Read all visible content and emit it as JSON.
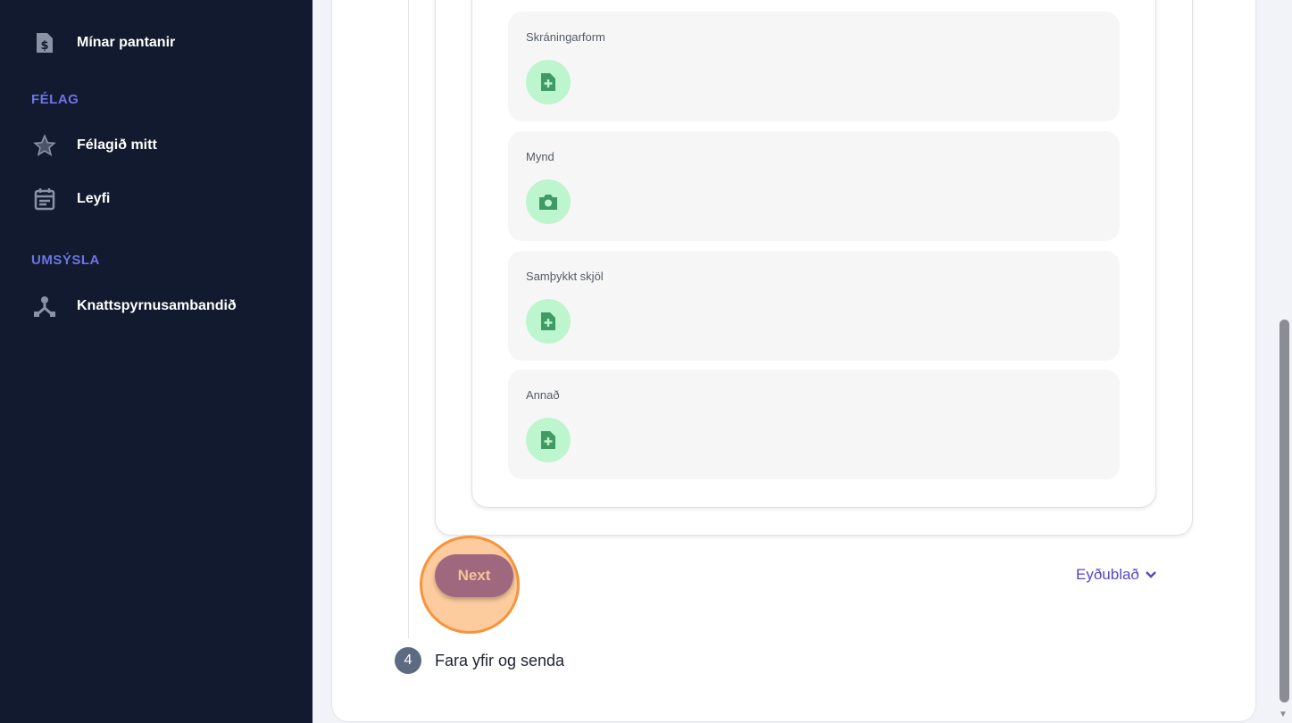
{
  "sidebar": {
    "items": [
      {
        "label": "Mínar pantanir",
        "icon": "invoice-dollar-icon"
      },
      {
        "label": "Félagið mitt",
        "icon": "star-icon"
      },
      {
        "label": "Leyfi",
        "icon": "calendar-icon"
      },
      {
        "label": "Knattspyrnusambandið",
        "icon": "hierarchy-icon"
      }
    ],
    "sections": [
      "FÉLAG",
      "UMSÝSLA"
    ]
  },
  "attachments": [
    {
      "label": "Skráningarform",
      "icon": "file-plus-icon"
    },
    {
      "label": "Mynd",
      "icon": "camera-icon"
    },
    {
      "label": "Samþykkt skjöl",
      "icon": "file-plus-icon"
    },
    {
      "label": "Annað",
      "icon": "file-plus-icon"
    }
  ],
  "actions": {
    "next": "Next",
    "form": "Eyðublað"
  },
  "step": {
    "number": "4",
    "title": "Fara yfir og senda"
  },
  "colors": {
    "sidebar": "#111a2e",
    "accent": "#6f74e6",
    "next_button": "#a0687f",
    "highlight": "#f7943a",
    "icon_bg": "#bdf5cf"
  }
}
